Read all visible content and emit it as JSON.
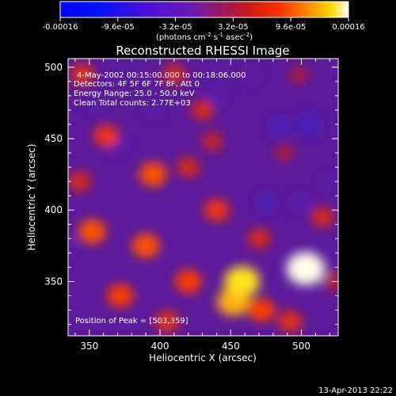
{
  "chart_data": {
    "type": "heatmap",
    "title": "Reconstructed RHESSI Image",
    "xlabel": "Heliocentric X (arcsec)",
    "ylabel": "Heliocentric Y (arcsec)",
    "xlim": [
      335,
      526
    ],
    "ylim": [
      312,
      506
    ],
    "x_ticks": [
      "350",
      "400",
      "450",
      "500"
    ],
    "y_ticks": [
      "350",
      "400",
      "450",
      "500"
    ],
    "colorbar": {
      "range": [
        -0.00016,
        0.00016
      ],
      "tick_labels": [
        "-0.00016",
        "-9.6e-05",
        "-3.2e-05",
        "3.2e-05",
        "9.6e-05",
        "0.00016"
      ],
      "unit_base": "(photons cm",
      "unit_exp1": "-2",
      "unit_mid": " s",
      "unit_exp2": "-1",
      "unit_mid2": " asec",
      "unit_exp3": "-2",
      "unit_end": ")"
    },
    "annotations": [
      "4-May-2002 00:15:00.000 to 00:18:06.000",
      "Detectors: 4F 5F 6F 7F 8F, Att 0",
      "Energy Range: 25.0 - 50.0 keV",
      "Clean    Total counts: 2.77E+03"
    ],
    "peak_label": "Position of Peak = [503,359]",
    "peak_position": [
      503,
      359
    ],
    "features": [
      {
        "x": 503,
        "y": 359,
        "v": 1.0
      },
      {
        "x": 458,
        "y": 350,
        "v": 0.9
      },
      {
        "x": 452,
        "y": 336,
        "v": 0.8
      },
      {
        "x": 492,
        "y": 322,
        "v": 0.45
      },
      {
        "x": 472,
        "y": 330,
        "v": 0.55
      },
      {
        "x": 395,
        "y": 425,
        "v": 0.6
      },
      {
        "x": 362,
        "y": 452,
        "v": 0.5
      },
      {
        "x": 420,
        "y": 430,
        "v": 0.4
      },
      {
        "x": 430,
        "y": 470,
        "v": 0.4
      },
      {
        "x": 488,
        "y": 440,
        "v": 0.25
      },
      {
        "x": 352,
        "y": 385,
        "v": 0.6
      },
      {
        "x": 390,
        "y": 375,
        "v": 0.6
      },
      {
        "x": 372,
        "y": 340,
        "v": 0.55
      },
      {
        "x": 420,
        "y": 350,
        "v": 0.55
      },
      {
        "x": 405,
        "y": 322,
        "v": 0.45
      },
      {
        "x": 440,
        "y": 400,
        "v": 0.5
      },
      {
        "x": 470,
        "y": 380,
        "v": 0.4
      },
      {
        "x": 515,
        "y": 395,
        "v": 0.4
      },
      {
        "x": 345,
        "y": 495,
        "v": 0.45
      },
      {
        "x": 410,
        "y": 495,
        "v": 0.4
      },
      {
        "x": 498,
        "y": 495,
        "v": 0.25
      },
      {
        "x": 343,
        "y": 420,
        "v": 0.4
      },
      {
        "x": 437,
        "y": 448,
        "v": 0.35
      },
      {
        "x": 523,
        "y": 350,
        "v": 0.3
      },
      {
        "x": 485,
        "y": 458,
        "v": -0.35
      },
      {
        "x": 505,
        "y": 460,
        "v": -0.4
      },
      {
        "x": 475,
        "y": 405,
        "v": -0.3
      },
      {
        "x": 370,
        "y": 445,
        "v": -0.3
      },
      {
        "x": 440,
        "y": 480,
        "v": -0.25
      },
      {
        "x": 500,
        "y": 405,
        "v": -0.25
      },
      {
        "x": 395,
        "y": 470,
        "v": -0.2
      },
      {
        "x": 355,
        "y": 475,
        "v": -0.2
      },
      {
        "x": 335,
        "y": 375,
        "v": -0.15
      },
      {
        "x": 520,
        "y": 420,
        "v": -0.2
      },
      {
        "x": 465,
        "y": 495,
        "v": -0.15
      }
    ]
  },
  "footer": {
    "timestamp": "13-Apr-2013 22:22"
  }
}
